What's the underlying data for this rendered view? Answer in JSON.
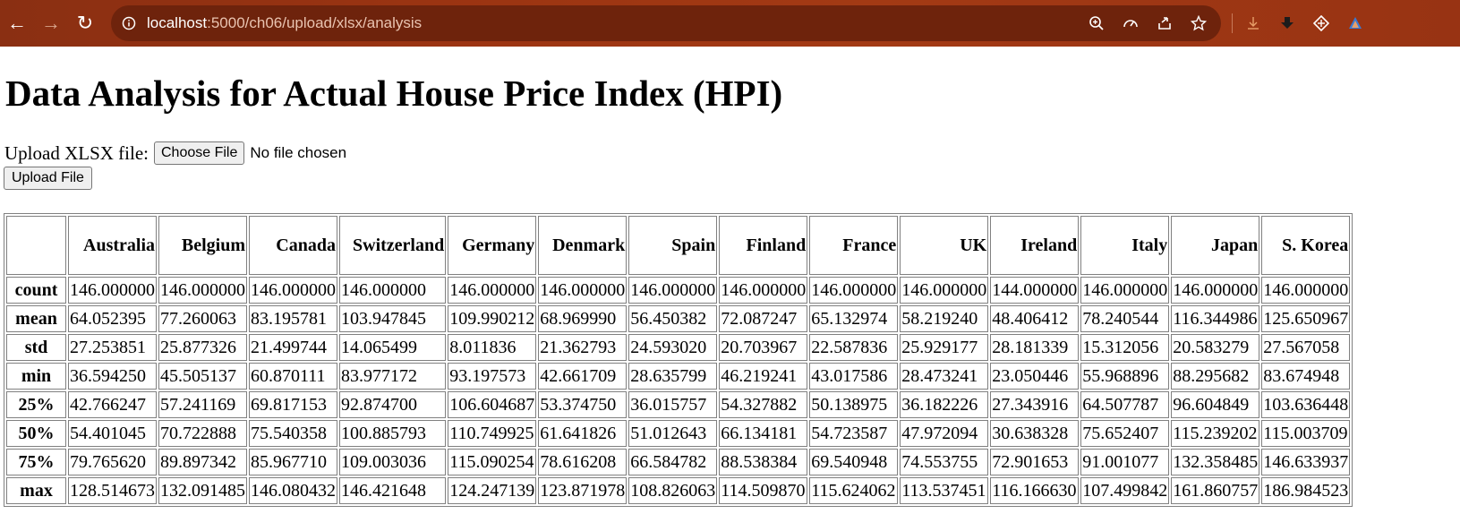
{
  "browser": {
    "url_host": "localhost",
    "url_path": ":5000/ch06/upload/xlsx/analysis",
    "back_glyph": "←",
    "forward_glyph": "→",
    "reload_glyph": "↻",
    "colors": {
      "bar": "#9b3412",
      "omnibox": "#6e230c"
    }
  },
  "page": {
    "title": "Data Analysis for Actual House Price Index (HPI)",
    "upload_label": "Upload XLSX file:",
    "choose_button": "Choose File",
    "no_file_text": "No file chosen",
    "upload_button": "Upload File"
  },
  "table": {
    "columns": [
      "Australia",
      "Belgium",
      "Canada",
      "Switzerland",
      "Germany",
      "Denmark",
      "Spain",
      "Finland",
      "France",
      "UK",
      "Ireland",
      "Italy",
      "Japan",
      "S. Korea"
    ],
    "rows": [
      {
        "label": "count",
        "values": [
          "146.000000",
          "146.000000",
          "146.000000",
          "146.000000",
          "146.000000",
          "146.000000",
          "146.000000",
          "146.000000",
          "146.000000",
          "146.000000",
          "144.000000",
          "146.000000",
          "146.000000",
          "146.000000"
        ]
      },
      {
        "label": "mean",
        "values": [
          "64.052395",
          "77.260063",
          "83.195781",
          "103.947845",
          "109.990212",
          "68.969990",
          "56.450382",
          "72.087247",
          "65.132974",
          "58.219240",
          "48.406412",
          "78.240544",
          "116.344986",
          "125.650967"
        ]
      },
      {
        "label": "std",
        "values": [
          "27.253851",
          "25.877326",
          "21.499744",
          "14.065499",
          "8.011836",
          "21.362793",
          "24.593020",
          "20.703967",
          "22.587836",
          "25.929177",
          "28.181339",
          "15.312056",
          "20.583279",
          "27.567058"
        ]
      },
      {
        "label": "min",
        "values": [
          "36.594250",
          "45.505137",
          "60.870111",
          "83.977172",
          "93.197573",
          "42.661709",
          "28.635799",
          "46.219241",
          "43.017586",
          "28.473241",
          "23.050446",
          "55.968896",
          "88.295682",
          "83.674948"
        ]
      },
      {
        "label": "25%",
        "values": [
          "42.766247",
          "57.241169",
          "69.817153",
          "92.874700",
          "106.604687",
          "53.374750",
          "36.015757",
          "54.327882",
          "50.138975",
          "36.182226",
          "27.343916",
          "64.507787",
          "96.604849",
          "103.636448"
        ]
      },
      {
        "label": "50%",
        "values": [
          "54.401045",
          "70.722888",
          "75.540358",
          "100.885793",
          "110.749925",
          "61.641826",
          "51.012643",
          "66.134181",
          "54.723587",
          "47.972094",
          "30.638328",
          "75.652407",
          "115.239202",
          "115.003709"
        ]
      },
      {
        "label": "75%",
        "values": [
          "79.765620",
          "89.897342",
          "85.967710",
          "109.003036",
          "115.090254",
          "78.616208",
          "66.584782",
          "88.538384",
          "69.540948",
          "74.553755",
          "72.901653",
          "91.001077",
          "132.358485",
          "146.633937"
        ]
      },
      {
        "label": "max",
        "values": [
          "128.514673",
          "132.091485",
          "146.080432",
          "146.421648",
          "124.247139",
          "123.871978",
          "108.826063",
          "114.509870",
          "115.624062",
          "113.537451",
          "116.166630",
          "107.499842",
          "161.860757",
          "186.984523"
        ]
      }
    ]
  }
}
